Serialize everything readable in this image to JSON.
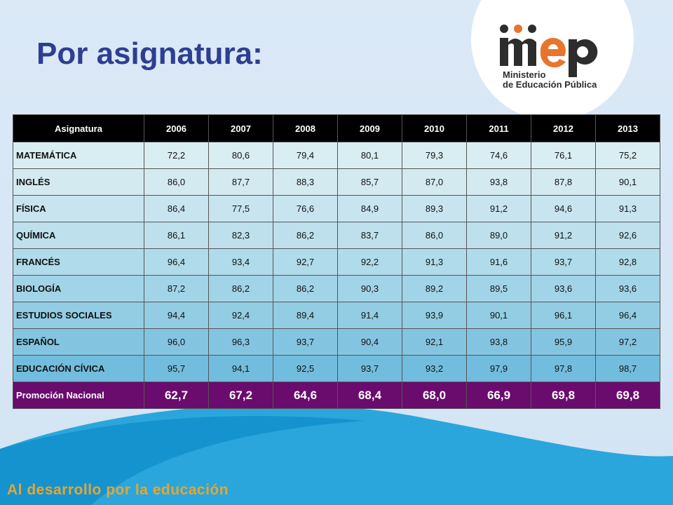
{
  "title": "Por asignatura:",
  "footer": "Al desarrollo por la educación",
  "logo": {
    "name": "mep",
    "line1": "Ministerio",
    "line2": "de Educación Pública",
    "colors": {
      "dark": "#2d2d2d",
      "orange": "#e8742d"
    }
  },
  "table": {
    "headers": [
      "Asignatura",
      "2006",
      "2007",
      "2008",
      "2009",
      "2010",
      "2011",
      "2012",
      "2013"
    ],
    "rows": [
      [
        "MATEMÁTICA",
        "72,2",
        "80,6",
        "79,4",
        "80,1",
        "79,3",
        "74,6",
        "76,1",
        "75,2"
      ],
      [
        "INGLÉS",
        "86,0",
        "87,7",
        "88,3",
        "85,7",
        "87,0",
        "93,8",
        "87,8",
        "90,1"
      ],
      [
        "FÍSICA",
        "86,4",
        "77,5",
        "76,6",
        "84,9",
        "89,3",
        "91,2",
        "94,6",
        "91,3"
      ],
      [
        "QUÍMICA",
        "86,1",
        "82,3",
        "86,2",
        "83,7",
        "86,0",
        "89,0",
        "91,2",
        "92,6"
      ],
      [
        "FRANCÉS",
        "96,4",
        "93,4",
        "92,7",
        "92,2",
        "91,3",
        "91,6",
        "93,7",
        "92,8"
      ],
      [
        "BIOLOGÍA",
        "87,2",
        "86,2",
        "86,2",
        "90,3",
        "89,2",
        "89,5",
        "93,6",
        "93,6"
      ],
      [
        "ESTUDIOS SOCIALES",
        "94,4",
        "92,4",
        "89,4",
        "91,4",
        "93,9",
        "90,1",
        "96,1",
        "96,4"
      ],
      [
        "ESPAÑOL",
        "96,0",
        "96,3",
        "93,7",
        "90,4",
        "92,1",
        "93,8",
        "95,9",
        "97,2"
      ],
      [
        "EDUCACIÓN CÍVICA",
        "95,7",
        "94,1",
        "92,5",
        "93,7",
        "93,2",
        "97,9",
        "97,8",
        "98,7"
      ]
    ],
    "promo": [
      "Promoción Nacional",
      "62,7",
      "67,2",
      "64,6",
      "68,4",
      "68,0",
      "66,9",
      "69,8",
      "69,8"
    ]
  }
}
